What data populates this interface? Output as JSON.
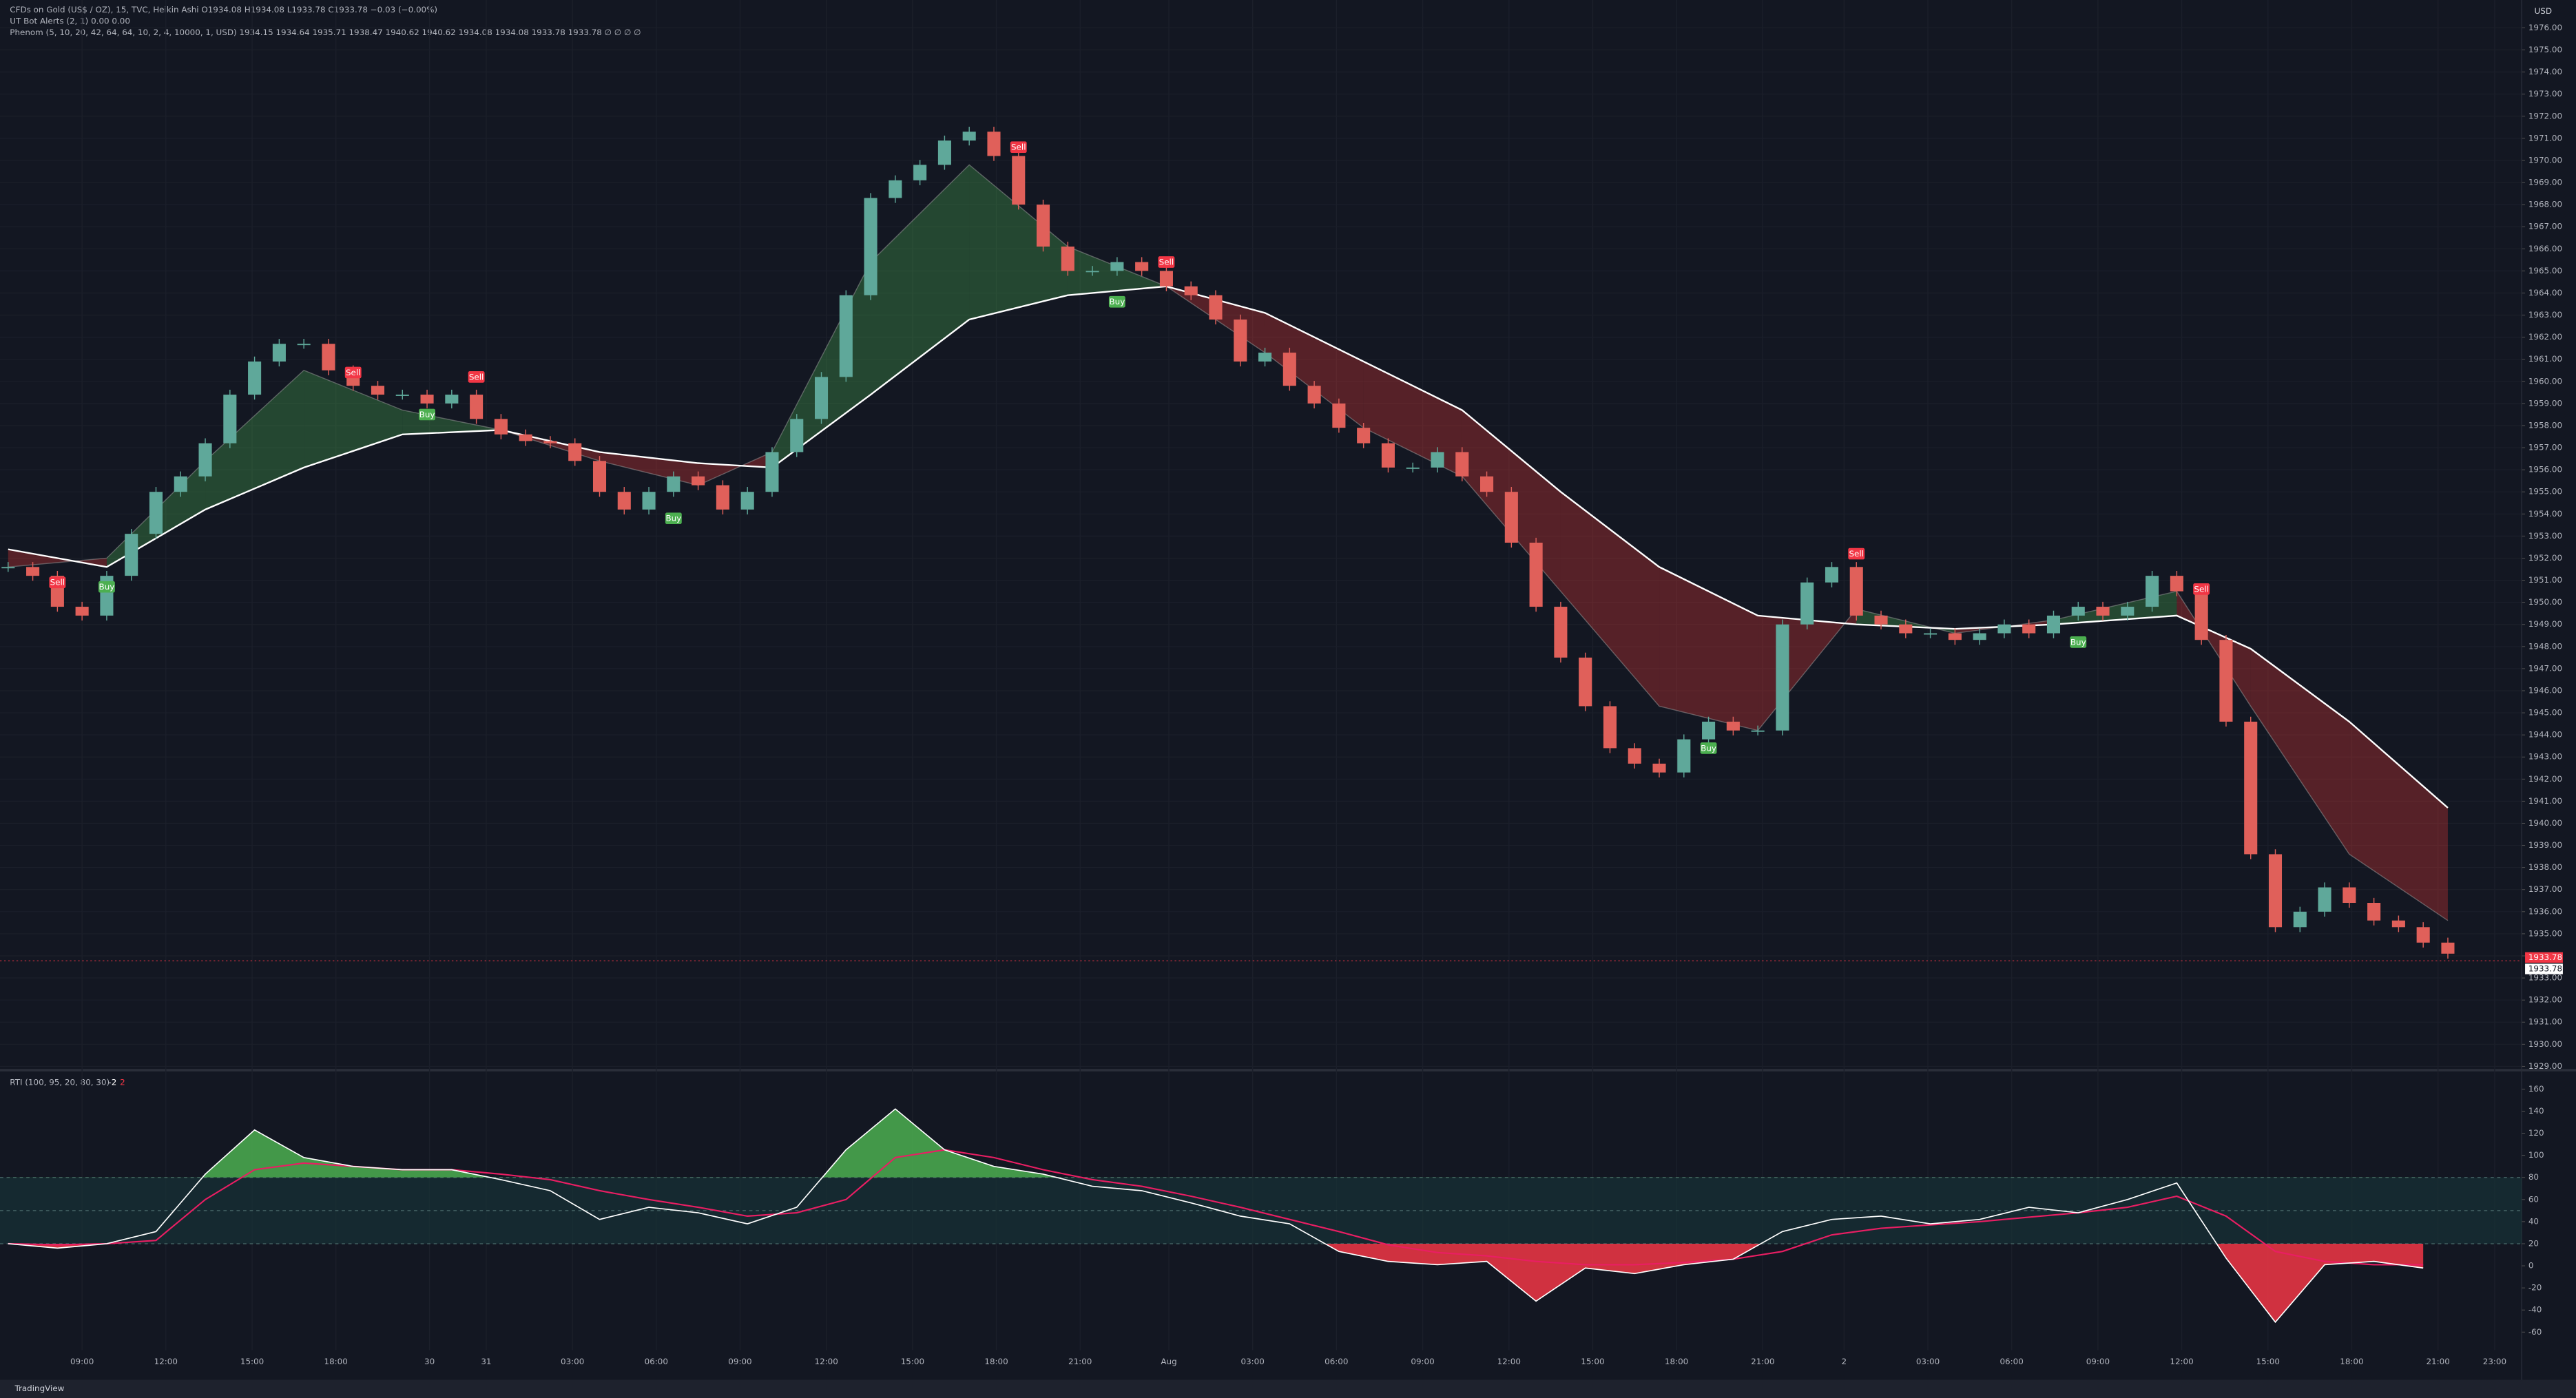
{
  "chart_data": {
    "type": "candlestick",
    "header": [
      "CFDs on Gold (US$ / OZ), 15, TVC, Heikin Ashi  O1934.08 H1934.08 L1933.78 C1933.78 −0.03 (−0.00%)",
      "UT Bot Alerts (2, 1)  0.00  0.00",
      "Phenom (5, 10, 20, 42, 64, 64, 10, 2, 4, 10000, 1, USD)  1934.15 1934.64 1935.71 1938.47 1940.62 1940.62 1934.08 1934.08 1933.78 1933.78 ∅ ∅ ∅ ∅"
    ],
    "currency": "USD",
    "brand": "TradingView",
    "up_color": "#5fa89a",
    "down_color": "#e0605a",
    "close": [
      1951.6,
      1951.2,
      1949.8,
      1949.4,
      1951.2,
      1953.1,
      1955.0,
      1955.7,
      1957.2,
      1959.4,
      1960.9,
      1961.7,
      1961.7,
      1960.5,
      1959.8,
      1959.4,
      1959.4,
      1959.0,
      1959.4,
      1958.3,
      1957.6,
      1957.3,
      1957.2,
      1956.4,
      1955.0,
      1954.2,
      1955.0,
      1955.7,
      1955.3,
      1954.2,
      1955.0,
      1956.8,
      1958.3,
      1960.2,
      1963.9,
      1968.3,
      1969.1,
      1969.8,
      1970.9,
      1971.3,
      1970.2,
      1968.0,
      1966.1,
      1965.0,
      1965.0,
      1965.4,
      1965.0,
      1964.3,
      1963.9,
      1962.8,
      1960.9,
      1961.3,
      1959.8,
      1959.0,
      1957.9,
      1957.2,
      1956.1,
      1956.1,
      1956.8,
      1955.7,
      1955.0,
      1952.7,
      1949.8,
      1947.5,
      1945.3,
      1943.4,
      1942.7,
      1942.3,
      1943.8,
      1944.6,
      1944.2,
      1944.2,
      1949.0,
      1950.9,
      1951.6,
      1949.4,
      1949.0,
      1948.6,
      1948.6,
      1948.3,
      1948.6,
      1949.0,
      1948.6,
      1949.4,
      1949.8,
      1949.4,
      1949.8,
      1951.2,
      1950.5,
      1948.3,
      1944.6,
      1938.6,
      1935.3,
      1936.0,
      1937.1,
      1936.4,
      1935.6,
      1935.3,
      1934.6,
      1934.1
    ],
    "ribbon": {
      "x": [
        0,
        4,
        8,
        12,
        16,
        20,
        24,
        28,
        31,
        35,
        39,
        43,
        47,
        51,
        55,
        59,
        63,
        67,
        71,
        75,
        79,
        83,
        88,
        91,
        95,
        99
      ],
      "slow": [
        1952.4,
        1951.6,
        1954.2,
        1956.1,
        1957.6,
        1957.8,
        1956.8,
        1956.3,
        1956.1,
        1959.4,
        1962.8,
        1963.9,
        1964.3,
        1963.1,
        1960.9,
        1958.7,
        1955.0,
        1951.6,
        1949.4,
        1949.0,
        1948.8,
        1949.0,
        1949.4,
        1947.9,
        1944.6,
        1940.7
      ],
      "fast": [
        1951.6,
        1952.0,
        1956.4,
        1960.5,
        1958.7,
        1957.8,
        1956.4,
        1955.3,
        1956.8,
        1965.4,
        1969.8,
        1966.1,
        1964.3,
        1961.3,
        1957.9,
        1955.7,
        1950.5,
        1945.3,
        1944.2,
        1949.7,
        1948.6,
        1949.2,
        1950.5,
        1945.3,
        1938.6,
        1935.6
      ],
      "bull_color": "#4caf50",
      "bear_color": "#e53935",
      "slow_color": "#ffffff"
    },
    "signals": [
      {
        "label": "Sell",
        "bar": 2,
        "price": 1950.9,
        "color": "#f23645"
      },
      {
        "label": "Buy",
        "bar": 4,
        "price": 1950.7,
        "color": "#4caf50"
      },
      {
        "label": "Sell",
        "bar": 14,
        "price": 1960.4,
        "color": "#f23645"
      },
      {
        "label": "Buy",
        "bar": 17,
        "price": 1958.5,
        "color": "#4caf50"
      },
      {
        "label": "Sell",
        "bar": 19,
        "price": 1960.2,
        "color": "#f23645"
      },
      {
        "label": "Buy",
        "bar": 27,
        "price": 1953.8,
        "color": "#4caf50"
      },
      {
        "label": "Sell",
        "bar": 41,
        "price": 1970.6,
        "color": "#f23645"
      },
      {
        "label": "Buy",
        "bar": 45,
        "price": 1963.6,
        "color": "#4caf50"
      },
      {
        "label": "Sell",
        "bar": 47,
        "price": 1965.4,
        "color": "#f23645"
      },
      {
        "label": "Buy",
        "bar": 69,
        "price": 1943.4,
        "color": "#4caf50"
      },
      {
        "label": "Sell",
        "bar": 75,
        "price": 1952.2,
        "color": "#f23645"
      },
      {
        "label": "Buy",
        "bar": 84,
        "price": 1948.2,
        "color": "#4caf50"
      },
      {
        "label": "Sell",
        "bar": 89,
        "price": 1950.6,
        "color": "#f23645"
      }
    ],
    "last_price": 1933.78,
    "price_tags": [
      "1933.78",
      "1933.78"
    ],
    "xlim": [
      -0.33,
      102
    ],
    "xticks": [
      {
        "value": 3,
        "label": "09:00"
      },
      {
        "value": 6.4,
        "label": "12:00"
      },
      {
        "value": 9.9,
        "label": "15:00"
      },
      {
        "value": 13.3,
        "label": "18:00"
      },
      {
        "value": 17.1,
        "label": "30"
      },
      {
        "value": 19.4,
        "label": "31"
      },
      {
        "value": 22.9,
        "label": "03:00"
      },
      {
        "value": 26.3,
        "label": "06:00"
      },
      {
        "value": 29.7,
        "label": "09:00"
      },
      {
        "value": 33.2,
        "label": "12:00"
      },
      {
        "value": 36.7,
        "label": "15:00"
      },
      {
        "value": 40.1,
        "label": "18:00"
      },
      {
        "value": 43.5,
        "label": "21:00"
      },
      {
        "value": 47.1,
        "label": "Aug"
      },
      {
        "value": 50.5,
        "label": "03:00"
      },
      {
        "value": 53.9,
        "label": "06:00"
      },
      {
        "value": 57.4,
        "label": "09:00"
      },
      {
        "value": 60.9,
        "label": "12:00"
      },
      {
        "value": 64.3,
        "label": "15:00"
      },
      {
        "value": 67.7,
        "label": "18:00"
      },
      {
        "value": 71.2,
        "label": "21:00"
      },
      {
        "value": 74.5,
        "label": "2"
      },
      {
        "value": 77.9,
        "label": "03:00"
      },
      {
        "value": 81.3,
        "label": "06:00"
      },
      {
        "value": 84.8,
        "label": "09:00"
      },
      {
        "value": 88.2,
        "label": "12:00"
      },
      {
        "value": 91.7,
        "label": "15:00"
      },
      {
        "value": 95.1,
        "label": "18:00"
      },
      {
        "value": 98.6,
        "label": "21:00"
      },
      {
        "value": 100.9,
        "label": "23:00"
      }
    ],
    "ylim": [
      1928.94,
      1977.26
    ],
    "yticks": [
      {
        "value": 1929,
        "label": "1929.00"
      },
      {
        "value": 1930,
        "label": "1930.00"
      },
      {
        "value": 1931,
        "label": "1931.00"
      },
      {
        "value": 1932,
        "label": "1932.00"
      },
      {
        "value": 1933,
        "label": "1933.00"
      },
      {
        "value": 1934,
        "label": "1934.00"
      },
      {
        "value": 1935,
        "label": "1935.00"
      },
      {
        "value": 1936,
        "label": "1936.00"
      },
      {
        "value": 1937,
        "label": "1937.00"
      },
      {
        "value": 1938,
        "label": "1938.00"
      },
      {
        "value": 1939,
        "label": "1939.00"
      },
      {
        "value": 1940,
        "label": "1940.00"
      },
      {
        "value": 1941,
        "label": "1941.00"
      },
      {
        "value": 1942,
        "label": "1942.00"
      },
      {
        "value": 1943,
        "label": "1943.00"
      },
      {
        "value": 1944,
        "label": "1944.00"
      },
      {
        "value": 1945,
        "label": "1945.00"
      },
      {
        "value": 1946,
        "label": "1946.00"
      },
      {
        "value": 1947,
        "label": "1947.00"
      },
      {
        "value": 1948,
        "label": "1948.00"
      },
      {
        "value": 1949,
        "label": "1949.00"
      },
      {
        "value": 1950,
        "label": "1950.00"
      },
      {
        "value": 1951,
        "label": "1951.00"
      },
      {
        "value": 1952,
        "label": "1952.00"
      },
      {
        "value": 1953,
        "label": "1953.00"
      },
      {
        "value": 1954,
        "label": "1954.00"
      },
      {
        "value": 1955,
        "label": "1955.00"
      },
      {
        "value": 1956,
        "label": "1956.00"
      },
      {
        "value": 1957,
        "label": "1957.00"
      },
      {
        "value": 1958,
        "label": "1958.00"
      },
      {
        "value": 1959,
        "label": "1959.00"
      },
      {
        "value": 1960,
        "label": "1960.00"
      },
      {
        "value": 1961,
        "label": "1961.00"
      },
      {
        "value": 1962,
        "label": "1962.00"
      },
      {
        "value": 1963,
        "label": "1963.00"
      },
      {
        "value": 1964,
        "label": "1964.00"
      },
      {
        "value": 1965,
        "label": "1965.00"
      },
      {
        "value": 1966,
        "label": "1966.00"
      },
      {
        "value": 1967,
        "label": "1967.00"
      },
      {
        "value": 1968,
        "label": "1968.00"
      },
      {
        "value": 1969,
        "label": "1969.00"
      },
      {
        "value": 1970,
        "label": "1970.00"
      },
      {
        "value": 1971,
        "label": "1971.00"
      },
      {
        "value": 1972,
        "label": "1972.00"
      },
      {
        "value": 1973,
        "label": "1973.00"
      },
      {
        "value": 1974,
        "label": "1974.00"
      },
      {
        "value": 1975,
        "label": "1975.00"
      },
      {
        "value": 1976,
        "label": "1976.00"
      }
    ],
    "rti": {
      "title": "RTI (100, 95, 20, 80, 30)",
      "value_texts": [
        "-2",
        "2"
      ],
      "x": [
        0,
        2,
        4,
        6,
        8,
        10,
        12,
        14,
        16,
        18,
        20,
        22,
        24,
        26,
        28,
        30,
        32,
        34,
        36,
        38,
        40,
        42,
        44,
        46,
        48,
        50,
        52,
        54,
        56,
        58,
        60,
        62,
        64,
        66,
        68,
        70,
        72,
        74,
        76,
        78,
        80,
        82,
        84,
        86,
        88,
        90,
        92,
        94,
        96,
        98
      ],
      "line": [
        20,
        16,
        20,
        31,
        83,
        123,
        98,
        90,
        87,
        87,
        78,
        68,
        42,
        53,
        48,
        38,
        53,
        105,
        142,
        105,
        90,
        83,
        72,
        68,
        57,
        45,
        38,
        13,
        4,
        1,
        4,
        -32,
        -2,
        -7,
        1,
        6,
        31,
        42,
        45,
        38,
        42,
        53,
        48,
        60,
        75,
        7,
        -51,
        1,
        4,
        -2
      ],
      "ma": [
        20,
        19,
        20,
        23,
        60,
        87,
        93,
        90,
        87,
        87,
        83,
        78,
        68,
        60,
        53,
        45,
        48,
        60,
        98,
        105,
        98,
        87,
        78,
        72,
        63,
        53,
        42,
        31,
        19,
        12,
        9,
        4,
        1,
        1,
        3,
        6,
        13,
        28,
        34,
        37,
        40,
        44,
        48,
        53,
        63,
        45,
        13,
        4,
        1,
        1
      ],
      "line_color": "#ffffff",
      "ma_color": "#e91e63",
      "lower": 20,
      "upper": 80,
      "mid": 50,
      "ylim": [
        -76.4,
        176.4
      ],
      "yticks": [
        160,
        140,
        120,
        100,
        80,
        60,
        40,
        20,
        0,
        -20,
        -40,
        -60
      ]
    }
  }
}
